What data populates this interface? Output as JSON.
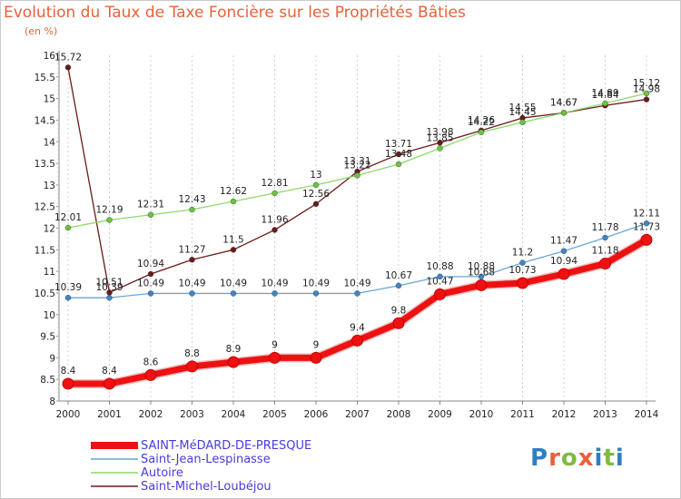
{
  "title": "Evolution du Taux de Taxe Foncière sur les Propriétés Bâties",
  "unit": "(en %)",
  "logo": "Proxiti",
  "colors": {
    "title": "#e8613a",
    "legend_text": "#4a3adf",
    "grid": "#d0d0d0",
    "axis": "#888888",
    "logo_letters": [
      "#2e7fc1",
      "#e8613a",
      "#7fb942",
      "#e8613a",
      "#2e7fc1",
      "#7fb942",
      "#2e7fc1"
    ]
  },
  "chart_data": {
    "type": "line",
    "title": "Evolution du Taux de Taxe Foncière sur les Propriétés Bâties",
    "ylabel": "(en %)",
    "xlabel": "",
    "x": [
      "2000",
      "2001",
      "2002",
      "2003",
      "2004",
      "2005",
      "2006",
      "2007",
      "2008",
      "2009",
      "2010",
      "2011",
      "2012",
      "2013",
      "2014"
    ],
    "ylim": [
      8,
      16
    ],
    "yticks": [
      "8",
      "8.5",
      "9",
      "9.5",
      "10",
      "10.5",
      "11",
      "11.5",
      "12",
      "12.5",
      "13",
      "13.5",
      "14",
      "14.5",
      "15",
      "15.5",
      "16"
    ],
    "grid": true,
    "legend_position": "bottom-left",
    "series": [
      {
        "name": "Saint-Michel-Loubéjou",
        "color": "#6b1a1a",
        "marker": "#6b1a1a",
        "values": [
          15.72,
          10.51,
          10.94,
          11.27,
          11.5,
          11.96,
          12.56,
          13.31,
          13.71,
          13.98,
          14.26,
          14.55,
          14.67,
          14.84,
          14.98
        ],
        "labels": [
          "15.72",
          "10.51",
          "10.94",
          "11.27",
          "11.5",
          "11.96",
          "12.56",
          "13.31",
          "13.71",
          "13.98",
          "14.26",
          "14.55",
          "14.67",
          "14.84",
          "14.98"
        ]
      },
      {
        "name": "Autoire",
        "color": "#8fd86a",
        "marker": "#6cc43f",
        "values": [
          12.01,
          12.19,
          12.31,
          12.43,
          12.62,
          12.81,
          13.0,
          13.22,
          13.48,
          13.85,
          14.22,
          14.45,
          14.67,
          14.89,
          15.12
        ],
        "labels": [
          "12.01",
          "12.19",
          "12.31",
          "12.43",
          "12.62",
          "12.81",
          "13",
          "13.22",
          "13.48",
          "13.85",
          "14.22",
          "14.45",
          "14.67",
          "14.89",
          "15.12"
        ]
      },
      {
        "name": "Saint-Jean-Lespinasse",
        "color": "#6aa6d6",
        "marker": "#3e86c8",
        "values": [
          10.39,
          10.39,
          10.49,
          10.49,
          10.49,
          10.49,
          10.49,
          10.49,
          10.67,
          10.88,
          10.88,
          11.2,
          11.47,
          11.78,
          12.11
        ],
        "labels": [
          "10.39",
          "10.39",
          "10.49",
          "10.49",
          "10.49",
          "10.49",
          "10.49",
          "10.49",
          "10.67",
          "10.88",
          "10.88",
          "11.2",
          "11.47",
          "11.78",
          "12.11"
        ]
      },
      {
        "name": "SAINT-MéDARD-DE-PRESQUE",
        "color": "#ee1111",
        "marker": "#ee1111",
        "values": [
          8.4,
          8.4,
          8.6,
          8.8,
          8.9,
          9.0,
          9.0,
          9.4,
          9.8,
          10.47,
          10.68,
          10.73,
          10.94,
          11.18,
          11.73
        ],
        "labels": [
          "8.4",
          "8.4",
          "8.6",
          "8.8",
          "8.9",
          "9",
          "9",
          "9.4",
          "9.8",
          "10.47",
          "10.68",
          "10.73",
          "10.94",
          "11.18",
          "11.73"
        ]
      }
    ],
    "legend": [
      "SAINT-MéDARD-DE-PRESQUE",
      "Saint-Jean-Lespinasse",
      "Autoire",
      "Saint-Michel-Loubéjou"
    ]
  }
}
